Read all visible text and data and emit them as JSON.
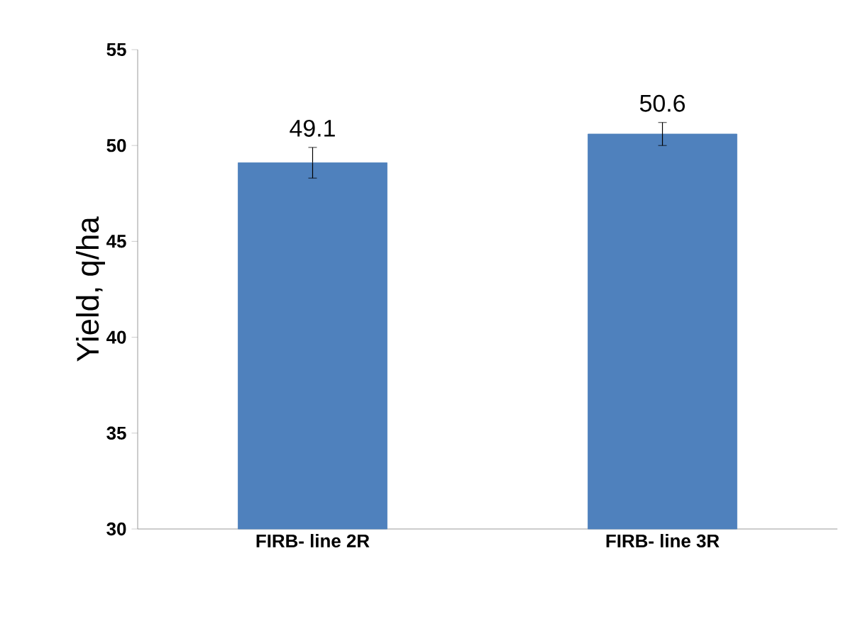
{
  "chart_data": {
    "type": "bar",
    "ylabel": "Yield,  q/ha",
    "categories": [
      "FIRB- line 2R",
      "FIRB- line 3R"
    ],
    "values": [
      49.1,
      50.6
    ],
    "errors": [
      0.8,
      0.6
    ],
    "color": "#4f81bd",
    "ylim": [
      30,
      55
    ],
    "yticks": [
      30,
      35,
      40,
      45,
      50,
      55
    ],
    "data_labels": true
  }
}
